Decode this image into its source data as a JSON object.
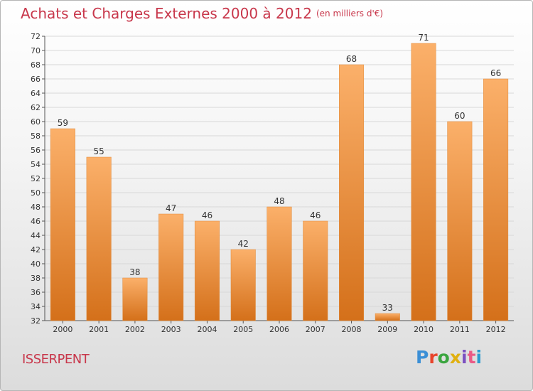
{
  "header": {
    "title": "Achats et Charges Externes 2000 à 2012",
    "unit": "(en milliers d'€)"
  },
  "footer": {
    "town": "ISSERPENT",
    "logo": "Proxiti",
    "logo_colors": [
      "#3b8fd6",
      "#e8442b",
      "#3aa53f",
      "#e0b010",
      "#7b4fc0",
      "#ea5a86",
      "#2a9bd0"
    ]
  },
  "colors": {
    "bar_light": "#fbb06a",
    "bar_dark": "#d4701a",
    "title": "#c8374b"
  },
  "chart_data": {
    "type": "bar",
    "title": "Achats et Charges Externes 2000 à 2012",
    "subtitle": "(en milliers d'€)",
    "categories": [
      "2000",
      "2001",
      "2002",
      "2003",
      "2004",
      "2005",
      "2006",
      "2007",
      "2008",
      "2009",
      "2010",
      "2011",
      "2012"
    ],
    "values": [
      59,
      55,
      38,
      47,
      46,
      42,
      48,
      46,
      68,
      33,
      71,
      60,
      66
    ],
    "ylim": [
      32,
      72
    ],
    "yticks": [
      32,
      34,
      36,
      38,
      40,
      42,
      44,
      46,
      48,
      50,
      52,
      54,
      56,
      58,
      60,
      62,
      64,
      66,
      68,
      70,
      72
    ],
    "grid": true,
    "legend": "none"
  }
}
